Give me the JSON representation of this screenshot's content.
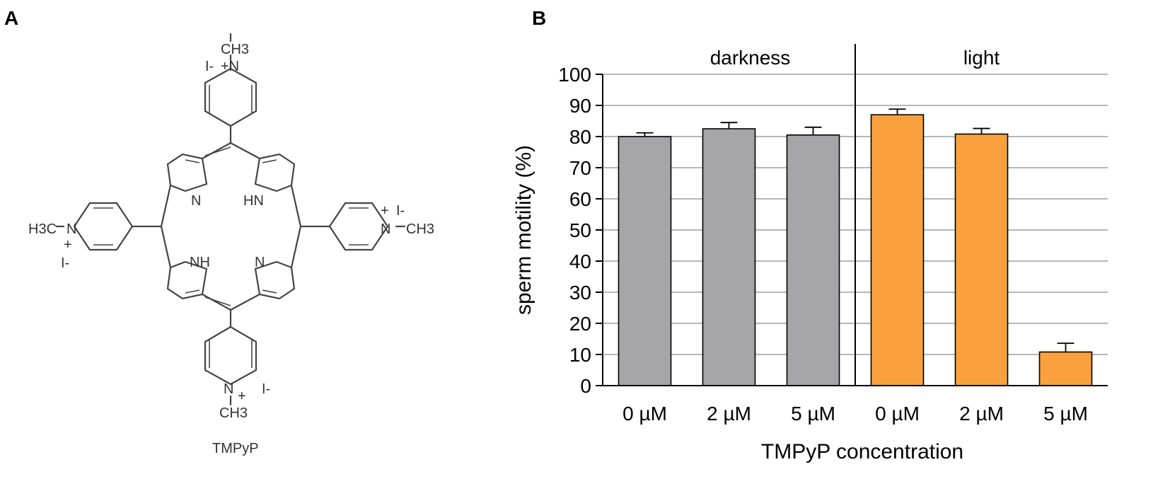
{
  "panels": {
    "a_label": "A",
    "b_label": "B"
  },
  "molecule": {
    "name": "TMPyP",
    "labels": {
      "top_ch3": "CH3",
      "top_iodide": "I-",
      "top_n": "+N",
      "n_pyrrole_left": "N",
      "hn_pyrrole_right": "HN",
      "nh_pyrrole_left": "NH",
      "n_pyrrole_right": "N",
      "left_h3c": "H3C",
      "left_n": "N",
      "left_plus": "+",
      "left_iodide": "I-",
      "right_plus": "+",
      "right_iodide": "I-",
      "right_n": "N",
      "right_ch3": "CH3",
      "bottom_n": "N",
      "bottom_plus": "+",
      "bottom_iodide": "I-",
      "bottom_ch3": "CH3"
    }
  },
  "chart_data": {
    "type": "bar",
    "title": "",
    "xlabel": "TMPyP concentration",
    "ylabel": "sperm motility  (%)",
    "ylim": [
      0,
      100
    ],
    "yticks": [
      0,
      10,
      20,
      30,
      40,
      50,
      60,
      70,
      80,
      90,
      100
    ],
    "grid": "horizontal",
    "groups": [
      {
        "name": "darkness",
        "color": "#a6a6a8",
        "categories": [
          "0 µM",
          "2 µM",
          "5 µM"
        ],
        "values": [
          80,
          82.5,
          80.5
        ],
        "errors": [
          1.2,
          2.0,
          2.5
        ]
      },
      {
        "name": "light",
        "color": "#f9a03f",
        "categories": [
          "0 µM",
          "2 µM",
          "5 µM"
        ],
        "values": [
          87,
          80.8,
          10.8
        ],
        "errors": [
          1.8,
          1.8,
          2.8
        ]
      }
    ]
  }
}
